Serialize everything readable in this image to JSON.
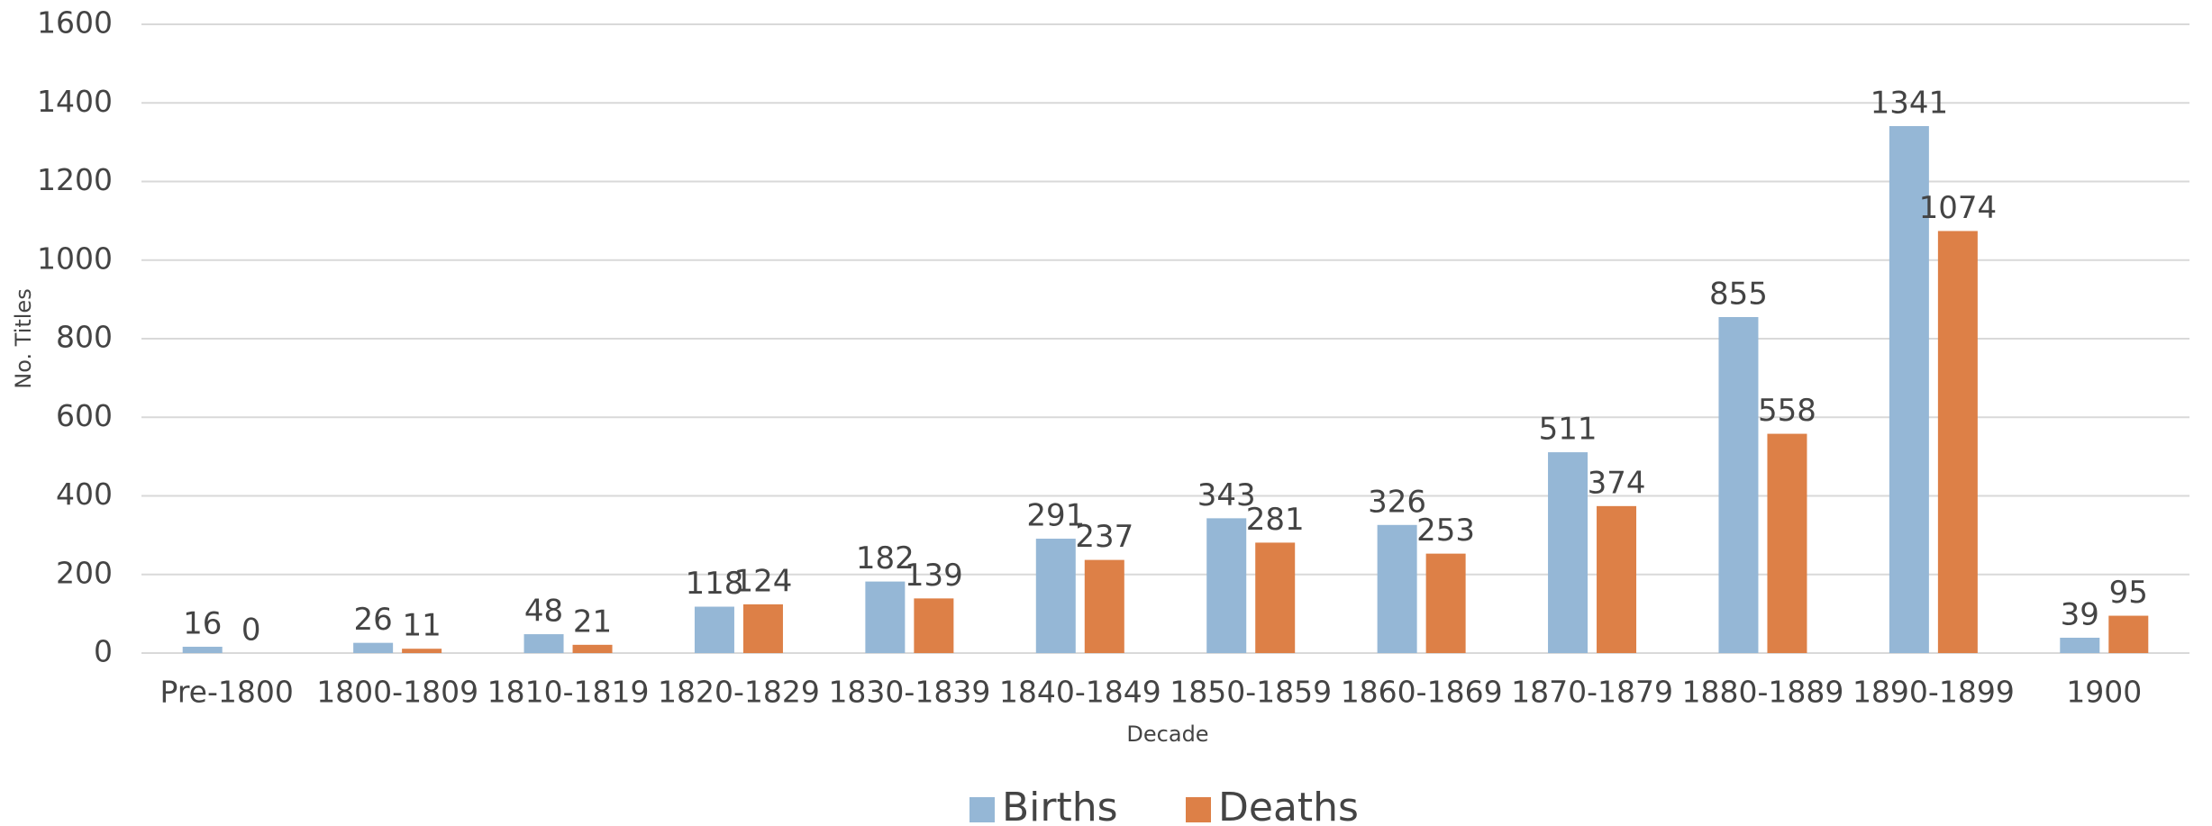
{
  "chart_data": {
    "type": "bar",
    "categories": [
      "Pre-1800",
      "1800-1809",
      "1810-1819",
      "1820-1829",
      "1830-1839",
      "1840-1849",
      "1850-1859",
      "1860-1869",
      "1870-1879",
      "1880-1889",
      "1890-1899",
      "1900"
    ],
    "series": [
      {
        "name": "Births",
        "color": "#95b7d6",
        "values": [
          16,
          26,
          48,
          118,
          182,
          291,
          343,
          326,
          511,
          855,
          1341,
          39
        ]
      },
      {
        "name": "Deaths",
        "color": "#dd8047",
        "values": [
          0,
          11,
          21,
          124,
          139,
          237,
          281,
          253,
          374,
          558,
          1074,
          95
        ]
      }
    ],
    "x_label": "Decade",
    "y_label": "No. Titles",
    "ylim": [
      0,
      1600
    ],
    "yticks": [
      0,
      200,
      400,
      600,
      800,
      1000,
      1200,
      1400,
      1600
    ],
    "grid": true,
    "legend": "bottom"
  }
}
